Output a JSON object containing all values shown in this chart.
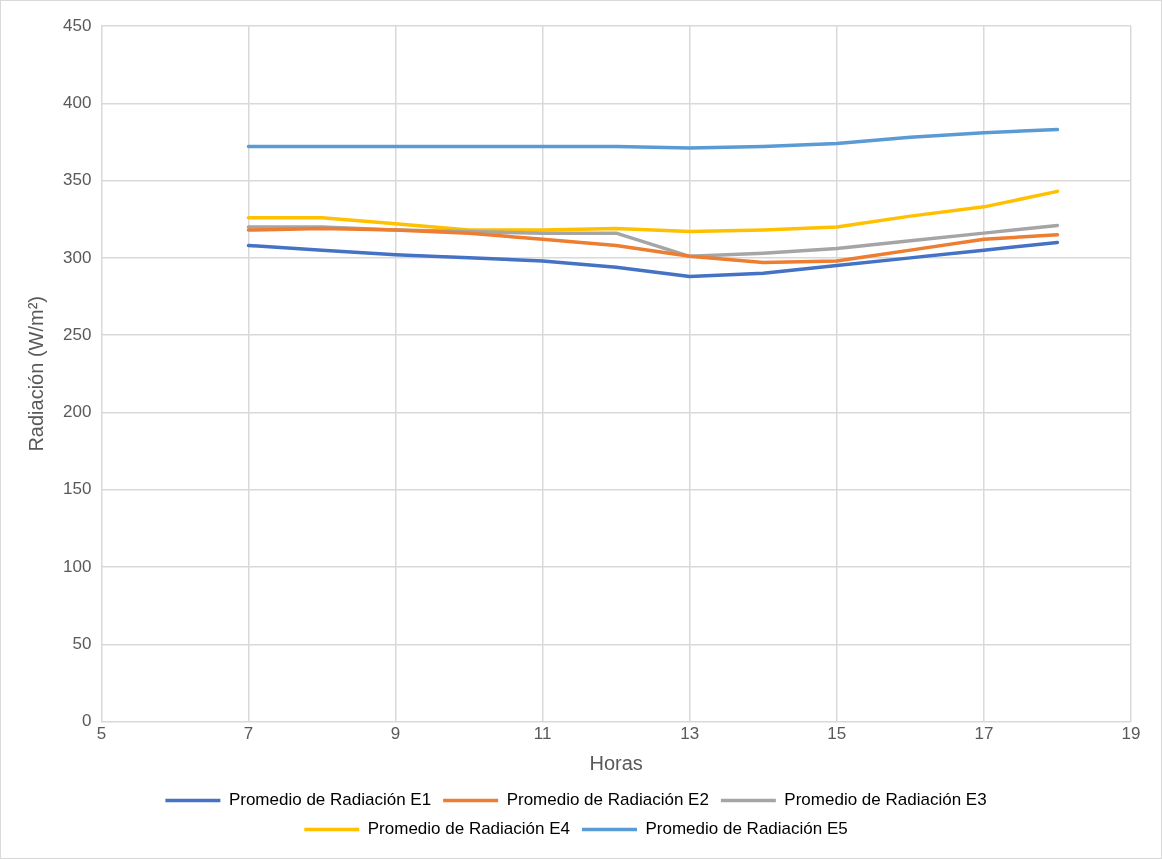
{
  "chart_data": {
    "type": "line",
    "xlabel": "Horas",
    "ylabel": "Radiación (W/m²)",
    "x": [
      7,
      8,
      9,
      10,
      11,
      12,
      13,
      14,
      15,
      16,
      17,
      18
    ],
    "series": [
      {
        "name": "Promedio de Radiación E1",
        "color": "#4472c4",
        "values": [
          308,
          305,
          302,
          300,
          298,
          294,
          288,
          290,
          295,
          300,
          305,
          310
        ]
      },
      {
        "name": "Promedio de Radiación E2",
        "color": "#ed7d31",
        "values": [
          318,
          319,
          318,
          316,
          312,
          308,
          301,
          297,
          298,
          305,
          312,
          315
        ]
      },
      {
        "name": "Promedio de Radiación E3",
        "color": "#a5a5a5",
        "values": [
          320,
          320,
          318,
          317,
          316,
          316,
          301,
          303,
          306,
          311,
          316,
          321
        ]
      },
      {
        "name": "Promedio de Radiación E4",
        "color": "#ffc000",
        "values": [
          326,
          326,
          322,
          318,
          318,
          319,
          317,
          318,
          320,
          327,
          333,
          343
        ]
      },
      {
        "name": "Promedio de Radiación E5",
        "color": "#5b9bd5",
        "values": [
          372,
          372,
          372,
          372,
          372,
          372,
          371,
          372,
          374,
          378,
          381,
          383
        ]
      }
    ],
    "xlim": [
      5,
      19
    ],
    "xticks": [
      5,
      7,
      9,
      11,
      13,
      15,
      17,
      19
    ],
    "ylim": [
      0,
      450
    ],
    "yticks": [
      0,
      50,
      100,
      150,
      200,
      250,
      300,
      350,
      400,
      450
    ],
    "grid": true,
    "legend": "bottom",
    "marker": "none",
    "line_style": "solid"
  }
}
